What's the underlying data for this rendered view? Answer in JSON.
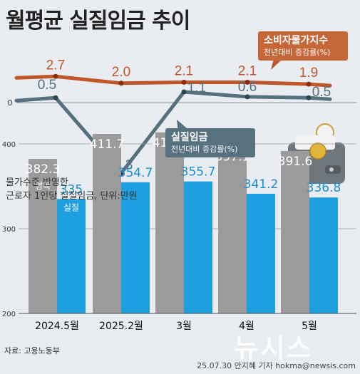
{
  "title": "월평균 실질임금 추이",
  "cpi_callout": {
    "main": "소비자물가지수",
    "sub": "전년대비 증감률(%)"
  },
  "wage_callout": {
    "main": "실질임금",
    "sub": "전년대비 증감률(%)"
  },
  "bar_note": {
    "line1": "물가수준 반영한",
    "line2": "근로자 1인당 실질임금, 단위:만원"
  },
  "source": "자료: 고용노동부",
  "credit": "25.07.30 안지혜 기자 hokma@newsis.com",
  "watermark": "뉴시스",
  "colors": {
    "cpi_line": "#c0562a",
    "wage_line": "#55707e",
    "nominal_bar": "#9b9b9b",
    "real_bar": "#1e9fdf",
    "background": "#e9ecf0"
  },
  "chart_data": [
    {
      "type": "line",
      "categories": [
        "2024.5월",
        "2025.2월",
        "3월",
        "4월",
        "5월"
      ],
      "series": [
        {
          "name": "소비자물가지수",
          "values": [
            2.7,
            2.0,
            2.1,
            2.1,
            1.9
          ],
          "labels": [
            "2.7",
            "2.0",
            "2.1",
            "2.1",
            "1.9"
          ]
        },
        {
          "name": "실질임금",
          "values": [
            0.5,
            -7.3,
            1.1,
            0.6,
            0.5
          ],
          "labels": [
            "0.5",
            "-7.3",
            "1.1",
            "0.6",
            "0.5"
          ]
        }
      ],
      "zero_label": "0",
      "ylim": [
        -8,
        3.5
      ]
    },
    {
      "type": "bar",
      "categories": [
        "2024.5월",
        "2025.2월",
        "3월",
        "4월",
        "5월"
      ],
      "series": [
        {
          "name": "명목",
          "values": [
            382.3,
            411.7,
            413.6,
            397.1,
            391.6
          ],
          "labels": [
            "382.3",
            "411.7",
            "413.6",
            "397.1",
            "391.6"
          ]
        },
        {
          "name": "실질",
          "values": [
            335,
            354.7,
            355.7,
            341.2,
            336.8
          ],
          "labels": [
            "335",
            "354.7",
            "355.7",
            "341.2",
            "336.8"
          ]
        }
      ],
      "yticks": [
        200,
        300,
        400
      ],
      "ylim": [
        200,
        430
      ]
    }
  ]
}
